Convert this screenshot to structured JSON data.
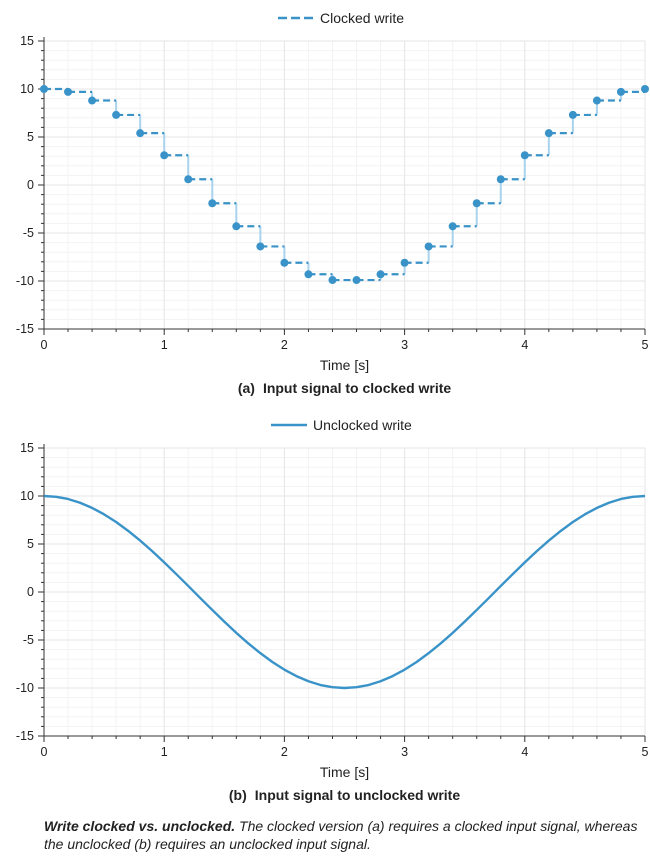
{
  "chart_data": [
    {
      "type": "line",
      "step": true,
      "markers": true,
      "line_style": "dashed",
      "x": [
        0,
        0.2,
        0.4,
        0.6,
        0.8,
        1.0,
        1.2,
        1.4,
        1.6,
        1.8,
        2.0,
        2.2,
        2.4,
        2.6,
        2.8,
        3.0,
        3.2,
        3.4,
        3.6,
        3.8,
        4.0,
        4.2,
        4.4,
        4.6,
        4.8,
        5.0
      ],
      "series": [
        {
          "name": "Clocked write",
          "values": [
            10,
            9.7,
            8.8,
            7.3,
            5.4,
            3.1,
            0.6,
            -1.9,
            -4.3,
            -6.4,
            -8.1,
            -9.3,
            -9.9,
            -9.9,
            -9.3,
            -8.1,
            -6.4,
            -4.3,
            -1.9,
            0.6,
            3.1,
            5.4,
            7.3,
            8.8,
            9.7,
            10
          ],
          "color": "#3a93c8"
        }
      ],
      "xlabel": "Time [s]",
      "ylabel": "",
      "xlim": [
        0,
        5
      ],
      "ylim": [
        -15,
        15
      ],
      "xticks": [
        "0",
        "1",
        "2",
        "3",
        "4",
        "5"
      ],
      "yticks": [
        "15",
        "10",
        "5",
        "0",
        "-5",
        "-10",
        "-15"
      ],
      "grid": true,
      "legend_position": "top-center",
      "caption_label": "(a)",
      "caption_text": "Input signal to clocked write"
    },
    {
      "type": "line",
      "x": [
        0,
        0.1,
        0.2,
        0.3,
        0.4,
        0.5,
        0.6,
        0.7,
        0.8,
        0.9,
        1.0,
        1.1,
        1.2,
        1.3,
        1.4,
        1.5,
        1.6,
        1.7,
        1.8,
        1.9,
        2.0,
        2.1,
        2.2,
        2.3,
        2.4,
        2.5,
        2.6,
        2.7,
        2.8,
        2.9,
        3.0,
        3.1,
        3.2,
        3.3,
        3.4,
        3.5,
        3.6,
        3.7,
        3.8,
        3.9,
        4.0,
        4.1,
        4.2,
        4.3,
        4.4,
        4.5,
        4.6,
        4.7,
        4.8,
        4.9,
        5.0
      ],
      "series": [
        {
          "name": "Unclocked write",
          "values": [
            10,
            9.92,
            9.69,
            9.3,
            8.76,
            8.09,
            7.29,
            6.37,
            5.36,
            4.26,
            3.09,
            1.87,
            0.63,
            -0.63,
            -1.87,
            -3.09,
            -4.26,
            -5.36,
            -6.37,
            -7.29,
            -8.09,
            -8.76,
            -9.3,
            -9.69,
            -9.92,
            -10,
            -9.92,
            -9.69,
            -9.3,
            -8.76,
            -8.09,
            -7.29,
            -6.37,
            -5.36,
            -4.26,
            -3.09,
            -1.87,
            -0.63,
            0.63,
            1.87,
            3.09,
            4.26,
            5.36,
            6.37,
            7.29,
            8.09,
            8.76,
            9.3,
            9.69,
            9.92,
            10
          ],
          "color": "#3a93c8"
        }
      ],
      "xlabel": "Time [s]",
      "ylabel": "",
      "xlim": [
        0,
        5
      ],
      "ylim": [
        -15,
        15
      ],
      "xticks": [
        "0",
        "1",
        "2",
        "3",
        "4",
        "5"
      ],
      "yticks": [
        "15",
        "10",
        "5",
        "0",
        "-5",
        "-10",
        "-15"
      ],
      "grid": true,
      "legend_position": "top-center",
      "caption_label": "(b)",
      "caption_text": "Input signal to unclocked write"
    }
  ],
  "figure_caption": {
    "bold": "Write clocked vs. unclocked.",
    "text": " The clocked version (a) requires a clocked input signal, whereas the unclocked (b) requires an unclocked input signal."
  },
  "colors": {
    "series": "#3a93c8",
    "series_light": "#a9d3ec",
    "grid_major": "#e6e6e6",
    "grid_minor": "#f3f3f3",
    "axis": "#333333"
  }
}
